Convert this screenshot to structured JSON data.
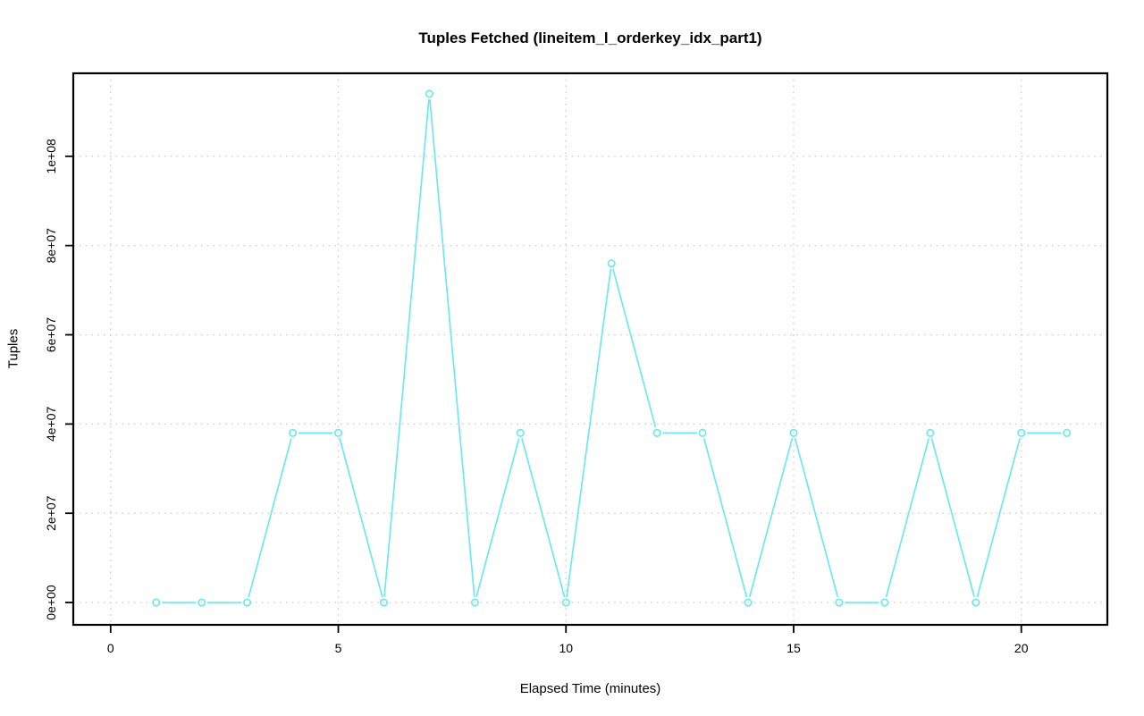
{
  "page": {
    "background_color": "#ffffff",
    "text_color": "#000000"
  },
  "chart_data": {
    "type": "line",
    "title": "Tuples Fetched (lineitem_l_orderkey_idx_part1)",
    "xlabel": "Elapsed Time (minutes)",
    "ylabel": "Tuples",
    "legend": "none",
    "grid": "dotted",
    "grid_color": "#d0d0d0",
    "frame_color": "#000000",
    "xlim": [
      -0.82,
      21.89
    ],
    "ylim": [
      -5000000,
      118600000
    ],
    "x_ticks": {
      "values": [
        0,
        5,
        10,
        15,
        20
      ],
      "labels": [
        "0",
        "5",
        "10",
        "15",
        "20"
      ]
    },
    "y_ticks": {
      "values": [
        0,
        20000000,
        40000000,
        60000000,
        80000000,
        100000000
      ],
      "labels": [
        "0e+00",
        "2e+07",
        "4e+07",
        "6e+07",
        "8e+07",
        "1e+08"
      ]
    },
    "series": [
      {
        "name": "tuples-fetched",
        "color": "#6de9ed",
        "marker": "open-circle",
        "line_type": "points-and-lines",
        "x": [
          1,
          2,
          3,
          4,
          5,
          6,
          7,
          8,
          9,
          10,
          11,
          12,
          13,
          14,
          15,
          16,
          17,
          18,
          19,
          20,
          21
        ],
        "values": [
          0,
          0,
          0,
          38000000,
          38000000,
          0,
          114000000,
          0,
          38000000,
          0,
          76000000,
          38000000,
          38000000,
          0,
          38000000,
          0,
          0,
          38000000,
          0,
          38000000,
          38000000
        ]
      }
    ]
  }
}
